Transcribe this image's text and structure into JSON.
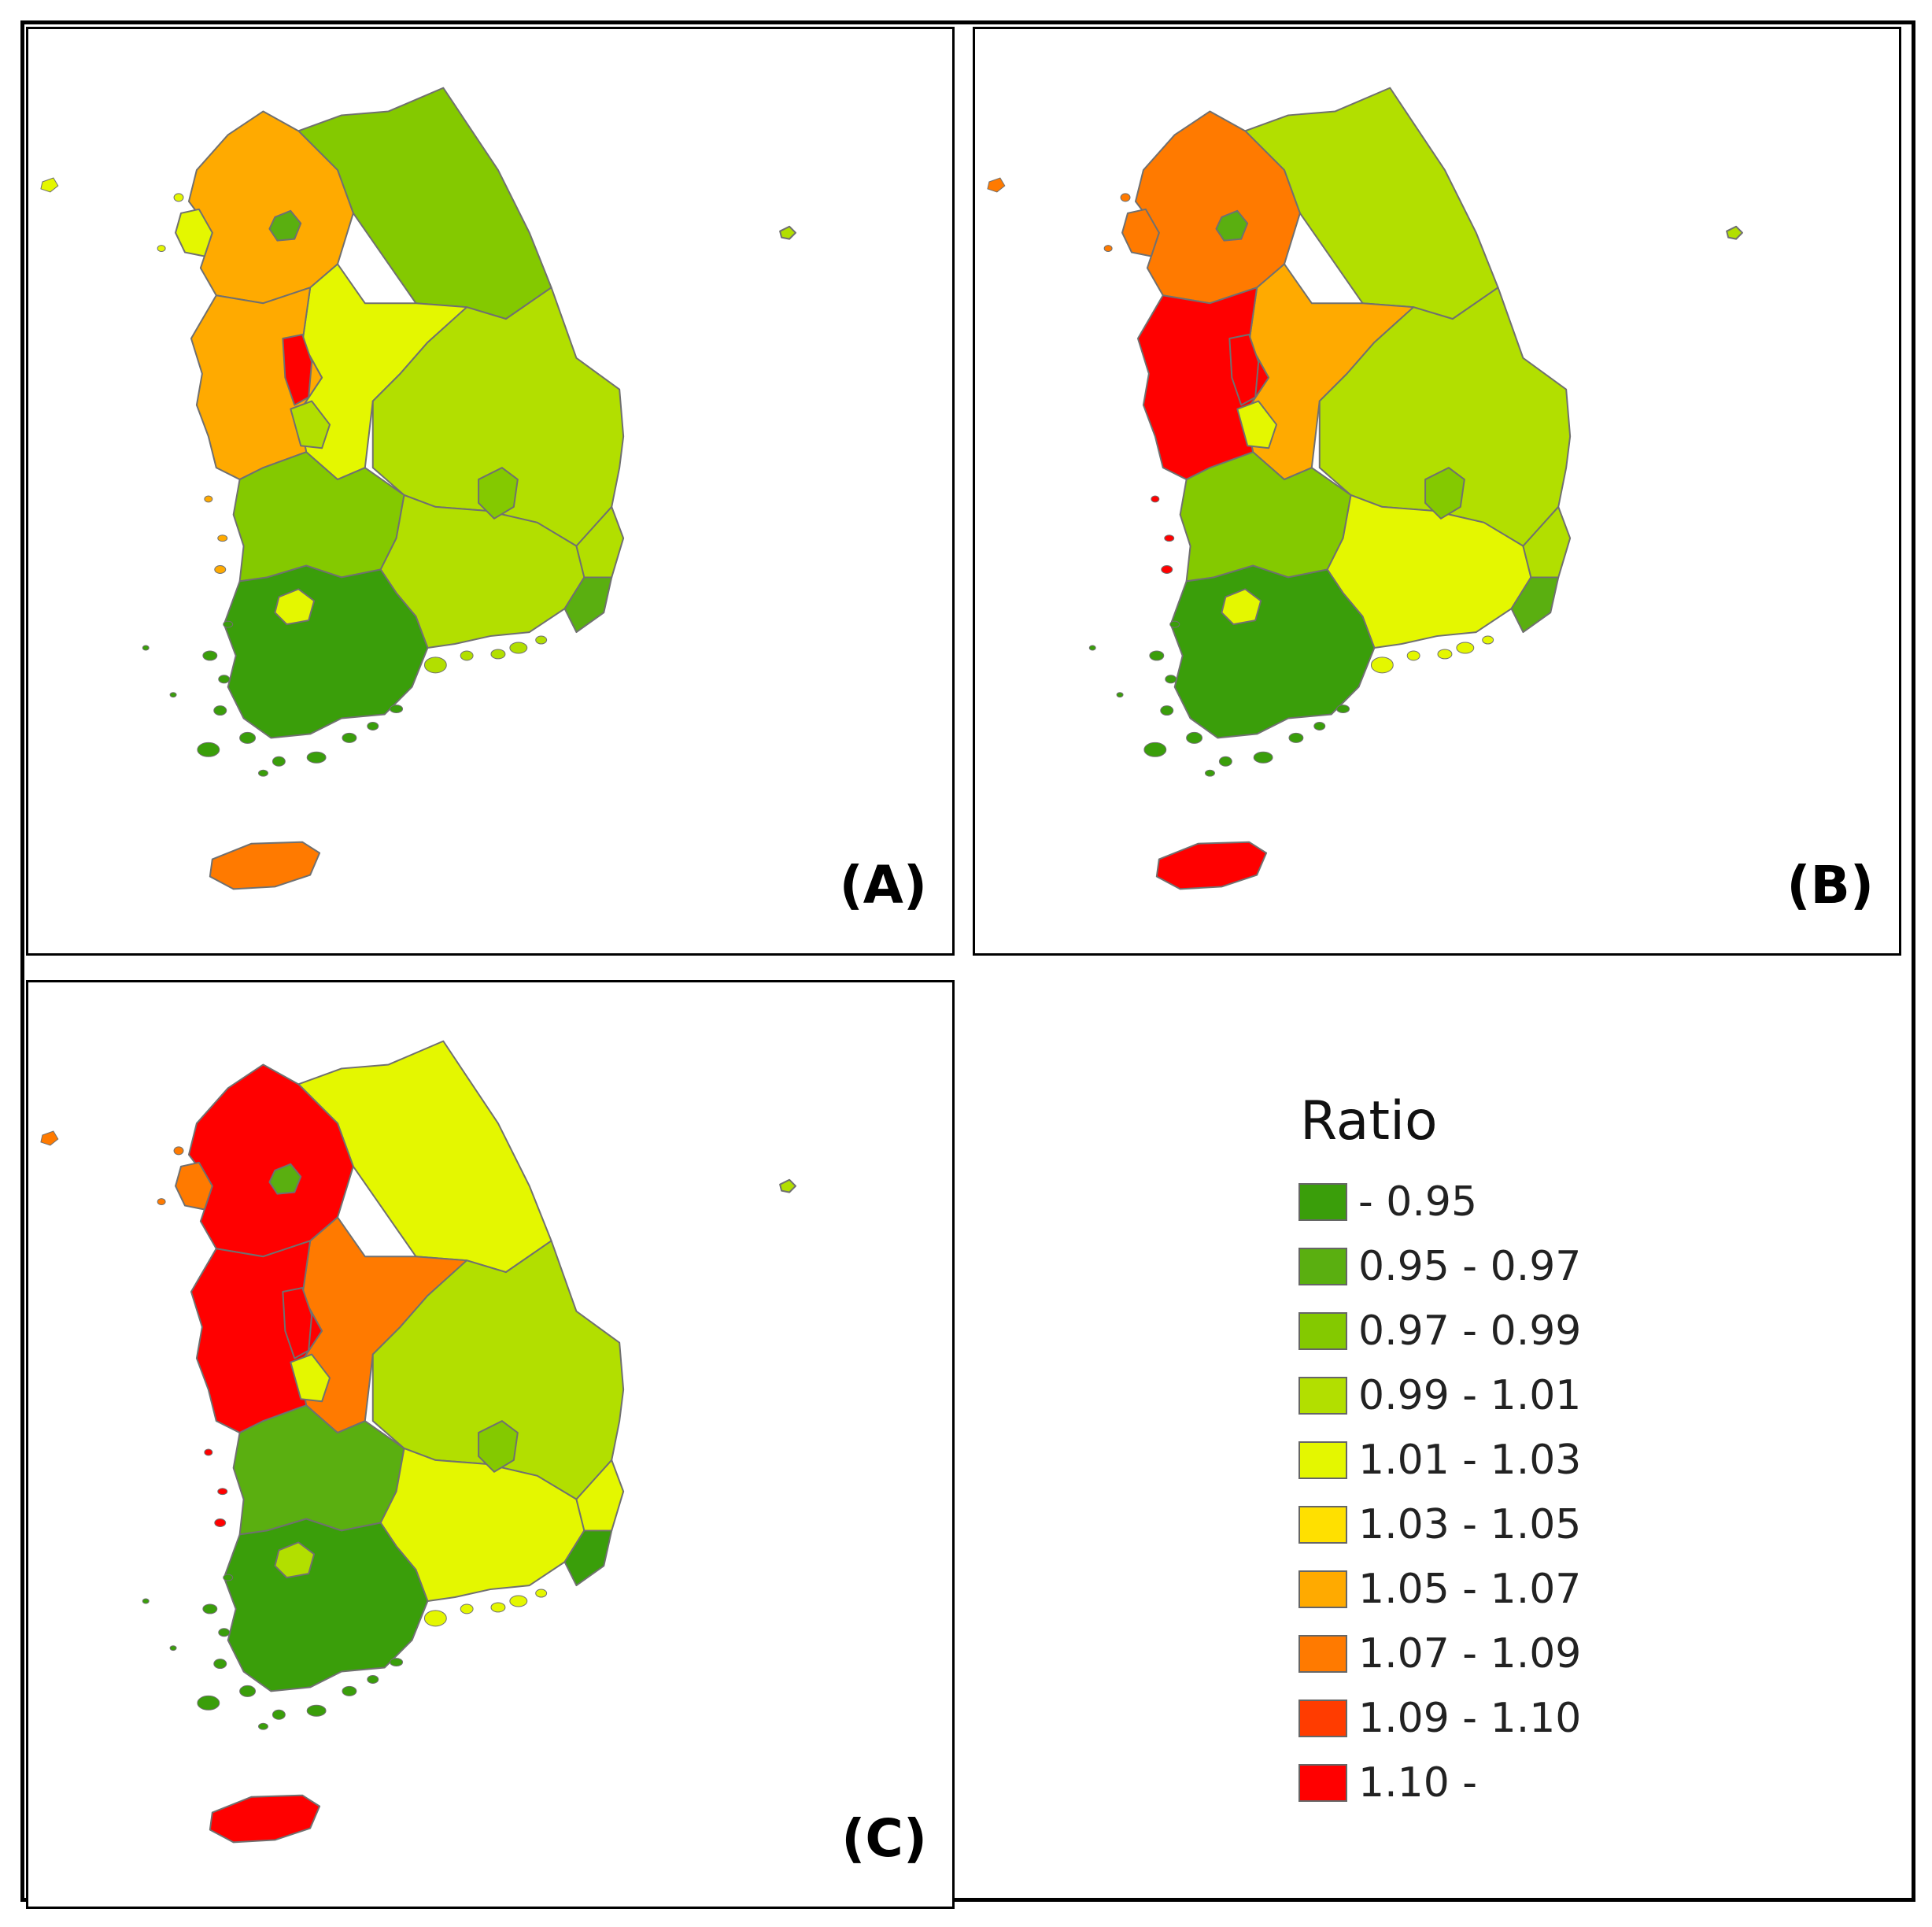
{
  "legend": {
    "title": "Ratio",
    "classes": [
      {
        "label": "- 0.95",
        "color": "#3a9e0a"
      },
      {
        "label": "0.95 - 0.97",
        "color": "#5aaf10"
      },
      {
        "label": "0.97 - 0.99",
        "color": "#84c900"
      },
      {
        "label": "0.99 - 1.01",
        "color": "#b2df00"
      },
      {
        "label": "1.01 - 1.03",
        "color": "#e4f700"
      },
      {
        "label": "1.03 - 1.05",
        "color": "#ffe000"
      },
      {
        "label": "1.05 - 1.07",
        "color": "#ffaa00"
      },
      {
        "label": "1.07 - 1.09",
        "color": "#ff7a00"
      },
      {
        "label": "1.09 - 1.10",
        "color": "#ff3c00"
      },
      {
        "label": "1.10 -",
        "color": "#ff0000"
      }
    ]
  },
  "panels": [
    {
      "label": "(A)",
      "regions": {
        "gangwon": "#84c900",
        "gyeonggi": "#ffaa00",
        "seoul": "#5aaf10",
        "incheon": "#e4f700",
        "chungbuk": "#e4f700",
        "chungnam": "#ffaa00",
        "sejong": "#ff0000",
        "daejeon": "#b2df00",
        "gyeongbuk": "#b2df00",
        "daegu": "#84c900",
        "jeonbuk": "#84c900",
        "gyeongnam": "#b2df00",
        "ulsan": "#b2df00",
        "busan": "#5aaf10",
        "jeonnam": "#3a9e0a",
        "gwangju": "#e4f700",
        "jeju": "#ff7a00",
        "ulleung": "#b2df00"
      }
    },
    {
      "label": "(B)",
      "regions": {
        "gangwon": "#b2df00",
        "gyeonggi": "#ff7a00",
        "seoul": "#5aaf10",
        "incheon": "#ff7a00",
        "chungbuk": "#ffaa00",
        "chungnam": "#ff0000",
        "sejong": "#ff0000",
        "daejeon": "#e4f700",
        "gyeongbuk": "#b2df00",
        "daegu": "#84c900",
        "jeonbuk": "#84c900",
        "gyeongnam": "#e4f700",
        "ulsan": "#b2df00",
        "busan": "#5aaf10",
        "jeonnam": "#3a9e0a",
        "gwangju": "#e4f700",
        "jeju": "#ff0000",
        "ulleung": "#b2df00"
      }
    },
    {
      "label": "(C)",
      "regions": {
        "gangwon": "#e4f700",
        "gyeonggi": "#ff0000",
        "seoul": "#5aaf10",
        "incheon": "#ff7a00",
        "chungbuk": "#ff7a00",
        "chungnam": "#ff0000",
        "sejong": "#ff0000",
        "daejeon": "#e4f700",
        "gyeongbuk": "#b2df00",
        "daegu": "#84c900",
        "jeonbuk": "#5aaf10",
        "gyeongnam": "#e4f700",
        "ulsan": "#e4f700",
        "busan": "#3a9e0a",
        "jeonnam": "#3a9e0a",
        "gwangju": "#b2df00",
        "jeju": "#ff0000",
        "ulleung": "#b2df00"
      }
    }
  ]
}
